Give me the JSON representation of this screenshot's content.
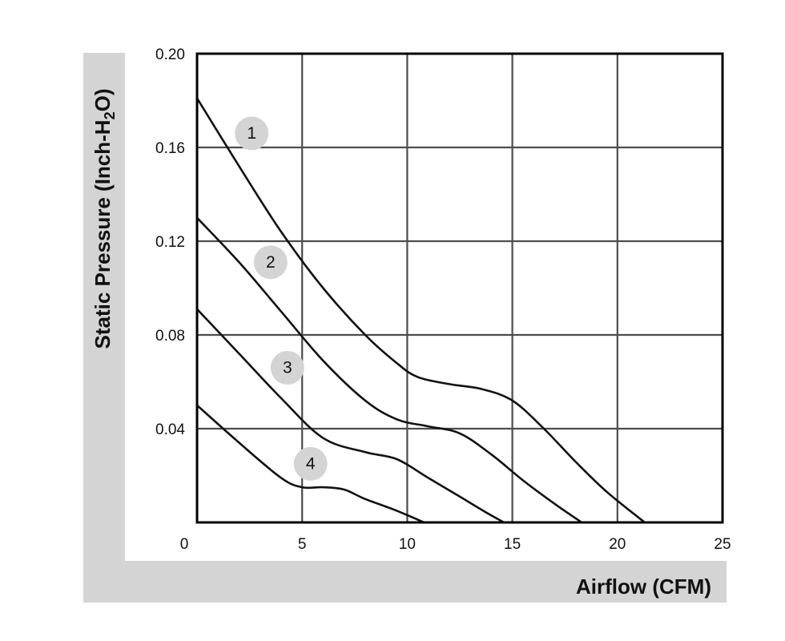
{
  "chart_data": {
    "type": "line",
    "xlabel": "Airflow (CFM)",
    "ylabel": "Static Pressure (Inch-H2O)",
    "ylabel_parts": {
      "before": "Static Pressure (Inch-H",
      "sub": "2",
      "after": "O)"
    },
    "xlim": [
      0,
      25
    ],
    "ylim": [
      0,
      0.2
    ],
    "x_ticks": [
      0,
      5,
      10,
      15,
      20,
      25
    ],
    "x_tick_labels": [
      "0",
      "5",
      "10",
      "15",
      "20",
      "25"
    ],
    "y_ticks": [
      0.04,
      0.08,
      0.12,
      0.16,
      0.2
    ],
    "y_tick_labels": [
      "0.04",
      "0.08",
      "0.12",
      "0.16",
      "0.20"
    ],
    "grid": true,
    "colors": {
      "line": "#111111",
      "grid": "#4d4d4d",
      "label_badge": "#d4d4d4",
      "axis_band": "#d4d4d4"
    },
    "series": [
      {
        "label": "1",
        "label_at": [
          2.6,
          0.166
        ],
        "x": [
          0,
          2,
          4,
          6,
          8,
          9.5,
          10.5,
          12,
          13.5,
          15,
          16.5,
          18,
          19.5,
          21.3
        ],
        "y": [
          0.181,
          0.152,
          0.124,
          0.1,
          0.08,
          0.068,
          0.062,
          0.059,
          0.057,
          0.052,
          0.04,
          0.026,
          0.013,
          0
        ]
      },
      {
        "label": "2",
        "label_at": [
          3.5,
          0.111
        ],
        "x": [
          0,
          2,
          4,
          6,
          8,
          9.5,
          11,
          12.5,
          14,
          15.5,
          17,
          18.3
        ],
        "y": [
          0.13,
          0.111,
          0.09,
          0.069,
          0.052,
          0.044,
          0.041,
          0.038,
          0.029,
          0.018,
          0.008,
          0
        ]
      },
      {
        "label": "3",
        "label_at": [
          4.3,
          0.066
        ],
        "x": [
          0,
          2,
          4,
          6,
          8,
          9.5,
          11,
          12.5,
          13.8,
          14.6
        ],
        "y": [
          0.091,
          0.072,
          0.053,
          0.036,
          0.03,
          0.027,
          0.019,
          0.011,
          0.004,
          0
        ]
      },
      {
        "label": "4",
        "label_at": [
          5.4,
          0.025
        ],
        "x": [
          0,
          2,
          4,
          5,
          6,
          7,
          8,
          9.5,
          10.8
        ],
        "y": [
          0.05,
          0.034,
          0.019,
          0.015,
          0.015,
          0.014,
          0.01,
          0.005,
          0
        ]
      }
    ]
  }
}
